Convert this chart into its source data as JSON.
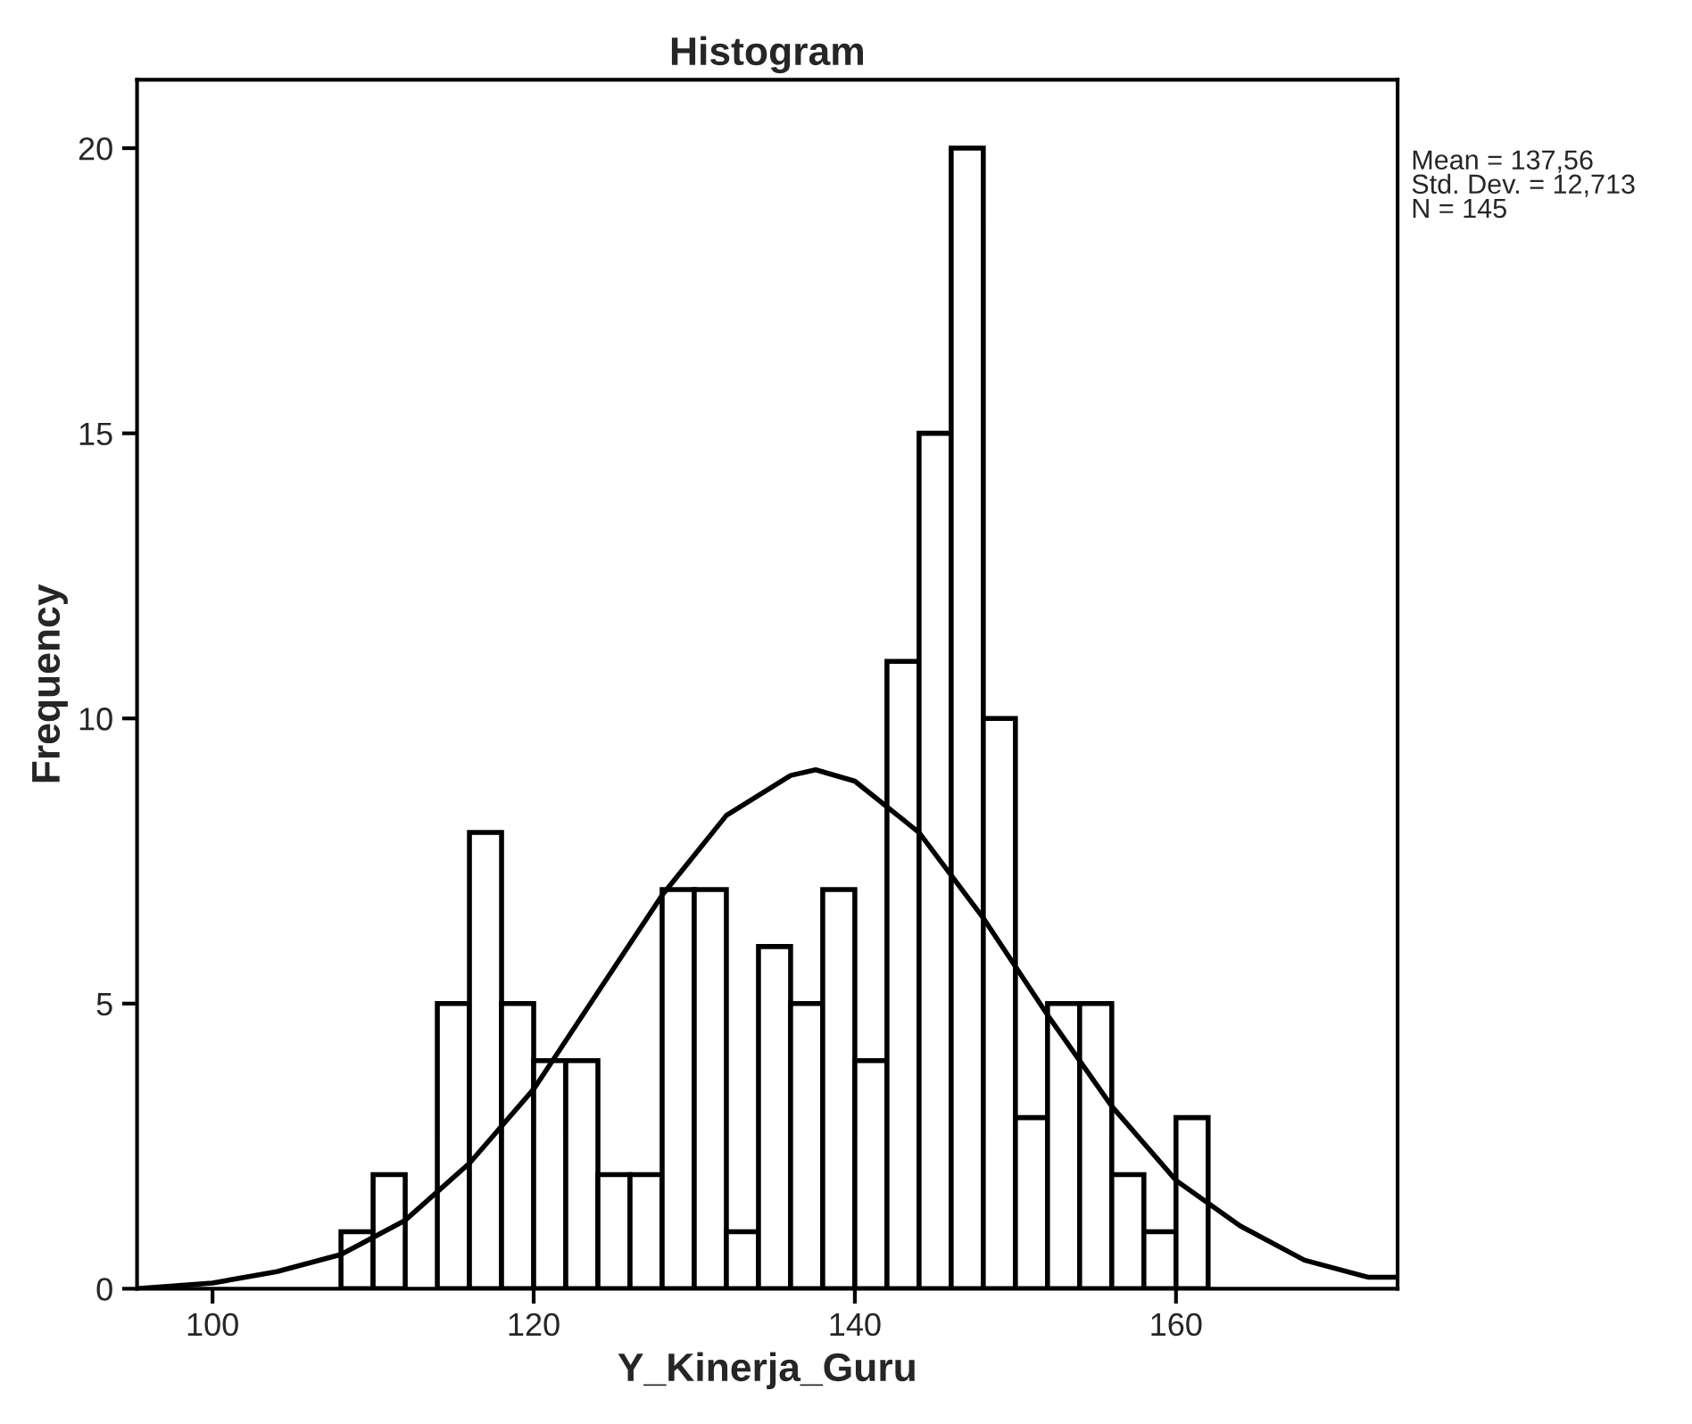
{
  "chart_data": {
    "type": "histogram",
    "title": "Histogram",
    "xlabel": "Y_Kinerja_Guru",
    "ylabel": "Frequency",
    "bins": [
      108,
      110,
      112,
      114,
      116,
      118,
      120,
      122,
      124,
      126,
      128,
      130,
      132,
      134,
      136,
      138,
      140,
      142,
      144,
      146,
      148,
      150,
      152,
      154,
      156,
      158,
      160,
      162
    ],
    "values": [
      1,
      2,
      0,
      5,
      8,
      5,
      4,
      4,
      2,
      2,
      7,
      7,
      1,
      6,
      5,
      7,
      4,
      11,
      15,
      20,
      10,
      3,
      5,
      5,
      2,
      1,
      3
    ],
    "color": "#ffffff",
    "series": [
      {
        "type": "line",
        "color": "#000000",
        "x": [
          95.3,
          100,
          104,
          108,
          112,
          116,
          120,
          124,
          128,
          132,
          136,
          137.56,
          140,
          144,
          148,
          152,
          156,
          160,
          164,
          168,
          172,
          173.8
        ],
        "values": [
          0.0,
          0.1,
          0.3,
          0.6,
          1.2,
          2.2,
          3.5,
          5.2,
          6.9,
          8.3,
          9.0,
          9.1,
          8.9,
          8.0,
          6.5,
          4.8,
          3.2,
          1.9,
          1.1,
          0.5,
          0.2,
          0.2
        ]
      }
    ],
    "xlim": [
      95.3,
      173.8
    ],
    "ylim": [
      0,
      21.2
    ],
    "xticks": [
      100,
      120,
      140,
      160
    ],
    "yticks": [
      0,
      5,
      10,
      15,
      20
    ],
    "grid": false,
    "legend": false,
    "annotations": [
      "Mean = 137,56",
      "Std. Dev. = 12,713",
      "N = 145"
    ]
  }
}
